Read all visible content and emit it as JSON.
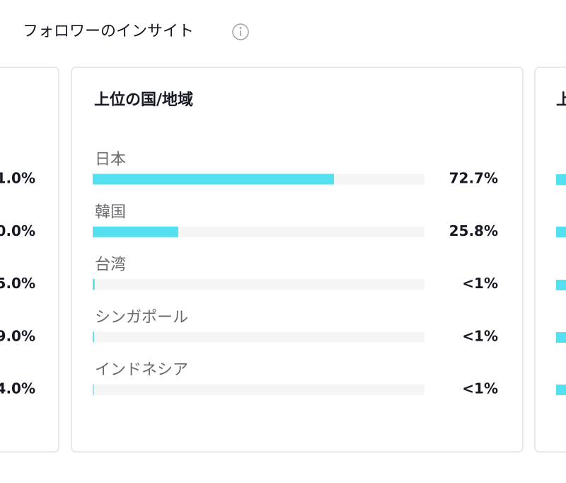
{
  "header": {
    "title": "フォロワーのインサイト"
  },
  "left_card": {
    "values": [
      "1.0%",
      "0.0%",
      "5.0%",
      "9.0%",
      "4.0%"
    ]
  },
  "chart_data": {
    "type": "bar",
    "orientation": "horizontal",
    "title": "上位の国/地域",
    "categories": [
      "日本",
      "韓国",
      "台湾",
      "シンガポール",
      "インドネシア"
    ],
    "values": [
      72.7,
      25.8,
      0.6,
      0.4,
      0.3
    ],
    "value_labels": [
      "72.7%",
      "25.8%",
      "<1%",
      "<1%",
      "<1%"
    ],
    "xlim": [
      0,
      100
    ],
    "color": "#54e0ef"
  },
  "right_card": {
    "title": "上"
  }
}
